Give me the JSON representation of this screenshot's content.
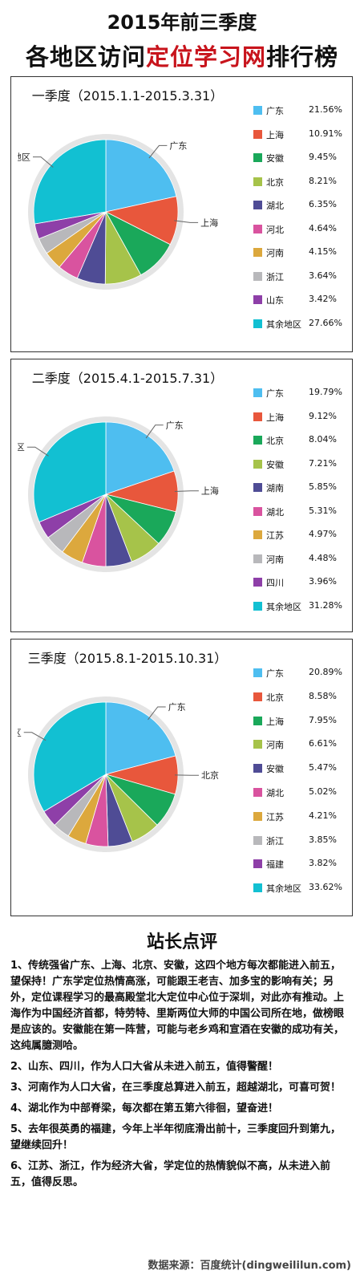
{
  "header": {
    "title_line1": "2015年前三季度",
    "title_pre": "各地区访问",
    "title_highlight": "定位学习网",
    "title_post": "排行榜"
  },
  "chart_data": [
    {
      "type": "pie",
      "title": "一季度（2015.1.1-2015.3.31）",
      "labels": [
        "广东",
        "上海",
        "安徽",
        "北京",
        "湖北",
        "河北",
        "河南",
        "浙江",
        "山东",
        "其余地区"
      ],
      "values": [
        21.56,
        10.91,
        9.45,
        8.21,
        6.35,
        4.64,
        4.15,
        3.64,
        3.42,
        27.66
      ],
      "value_labels": [
        "21.56%",
        "10.91%",
        "9.45%",
        "8.21%",
        "6.35%",
        "4.64%",
        "4.15%",
        "3.64%",
        "3.42%",
        "27.66%"
      ],
      "colors": [
        "#4ebef0",
        "#e8573c",
        "#1aa85a",
        "#a6c34a",
        "#4f4c95",
        "#d9539f",
        "#dca83d",
        "#b8b8bb",
        "#8e3fa8",
        "#12c0d2"
      ],
      "callouts": [
        "广东",
        "上海",
        "其余地区"
      ],
      "legend": "right"
    },
    {
      "type": "pie",
      "title": "二季度（2015.4.1-2015.7.31）",
      "labels": [
        "广东",
        "上海",
        "北京",
        "安徽",
        "湖南",
        "湖北",
        "江苏",
        "河南",
        "四川",
        "其余地区"
      ],
      "values": [
        19.79,
        9.12,
        8.04,
        7.21,
        5.85,
        5.31,
        4.97,
        4.48,
        3.96,
        31.28
      ],
      "value_labels": [
        "19.79%",
        "9.12%",
        "8.04%",
        "7.21%",
        "5.85%",
        "5.31%",
        "4.97%",
        "4.48%",
        "3.96%",
        "31.28%"
      ],
      "colors": [
        "#4ebef0",
        "#e8573c",
        "#1aa85a",
        "#a6c34a",
        "#4f4c95",
        "#d9539f",
        "#dca83d",
        "#b8b8bb",
        "#8e3fa8",
        "#12c0d2"
      ],
      "callouts": [
        "广东",
        "上海",
        "其余地区"
      ],
      "legend": "right"
    },
    {
      "type": "pie",
      "title": "三季度（2015.8.1-2015.10.31）",
      "labels": [
        "广东",
        "北京",
        "上海",
        "河南",
        "安徽",
        "湖北",
        "江苏",
        "浙江",
        "福建",
        "其余地区"
      ],
      "values": [
        20.89,
        8.58,
        7.95,
        6.61,
        5.47,
        5.02,
        4.21,
        3.85,
        3.82,
        33.62
      ],
      "value_labels": [
        "20.89%",
        "8.58%",
        "7.95%",
        "6.61%",
        "5.47%",
        "5.02%",
        "4.21%",
        "3.85%",
        "3.82%",
        "33.62%"
      ],
      "colors": [
        "#4ebef0",
        "#e8573c",
        "#1aa85a",
        "#a6c34a",
        "#4f4c95",
        "#d9539f",
        "#dca83d",
        "#b8b8bb",
        "#8e3fa8",
        "#12c0d2"
      ],
      "callouts": [
        "广东",
        "北京",
        "其余地区"
      ],
      "legend": "right"
    }
  ],
  "review": {
    "title": "站长点评",
    "items": [
      "1、传统强省广东、上海、北京、安徽，这四个地方每次都能进入前五，望保持！广东学定位热情高涨，可能跟王老吉、加多宝的影响有关；另外，定位课程学习的最高殿堂北大定位中心位于深圳，对此亦有推动。上海作为中国经济首都，特劳特、里斯两位大师的中国公司所在地，做榜眼是应该的。安徽能在第一阵营，可能与老乡鸡和宣酒在安徽的成功有关，这纯属臆测哈。",
      "2、山东、四川，作为人口大省从未进入前五，值得警醒！",
      "3、河南作为人口大省，在三季度总算进入前五，超越湖北，可喜可贺！",
      "4、湖北作为中部脊梁，每次都在第五第六徘徊，望奋进！",
      "5、去年很英勇的福建，今年上半年彻底滑出前十，三季度回升到第九，望继续回升！",
      "6、江苏、浙江，作为经济大省，学定位的热情貌似不高，从未进入前五，值得反思。"
    ]
  },
  "source": "数据来源：百度统计(dingweililun.com)"
}
